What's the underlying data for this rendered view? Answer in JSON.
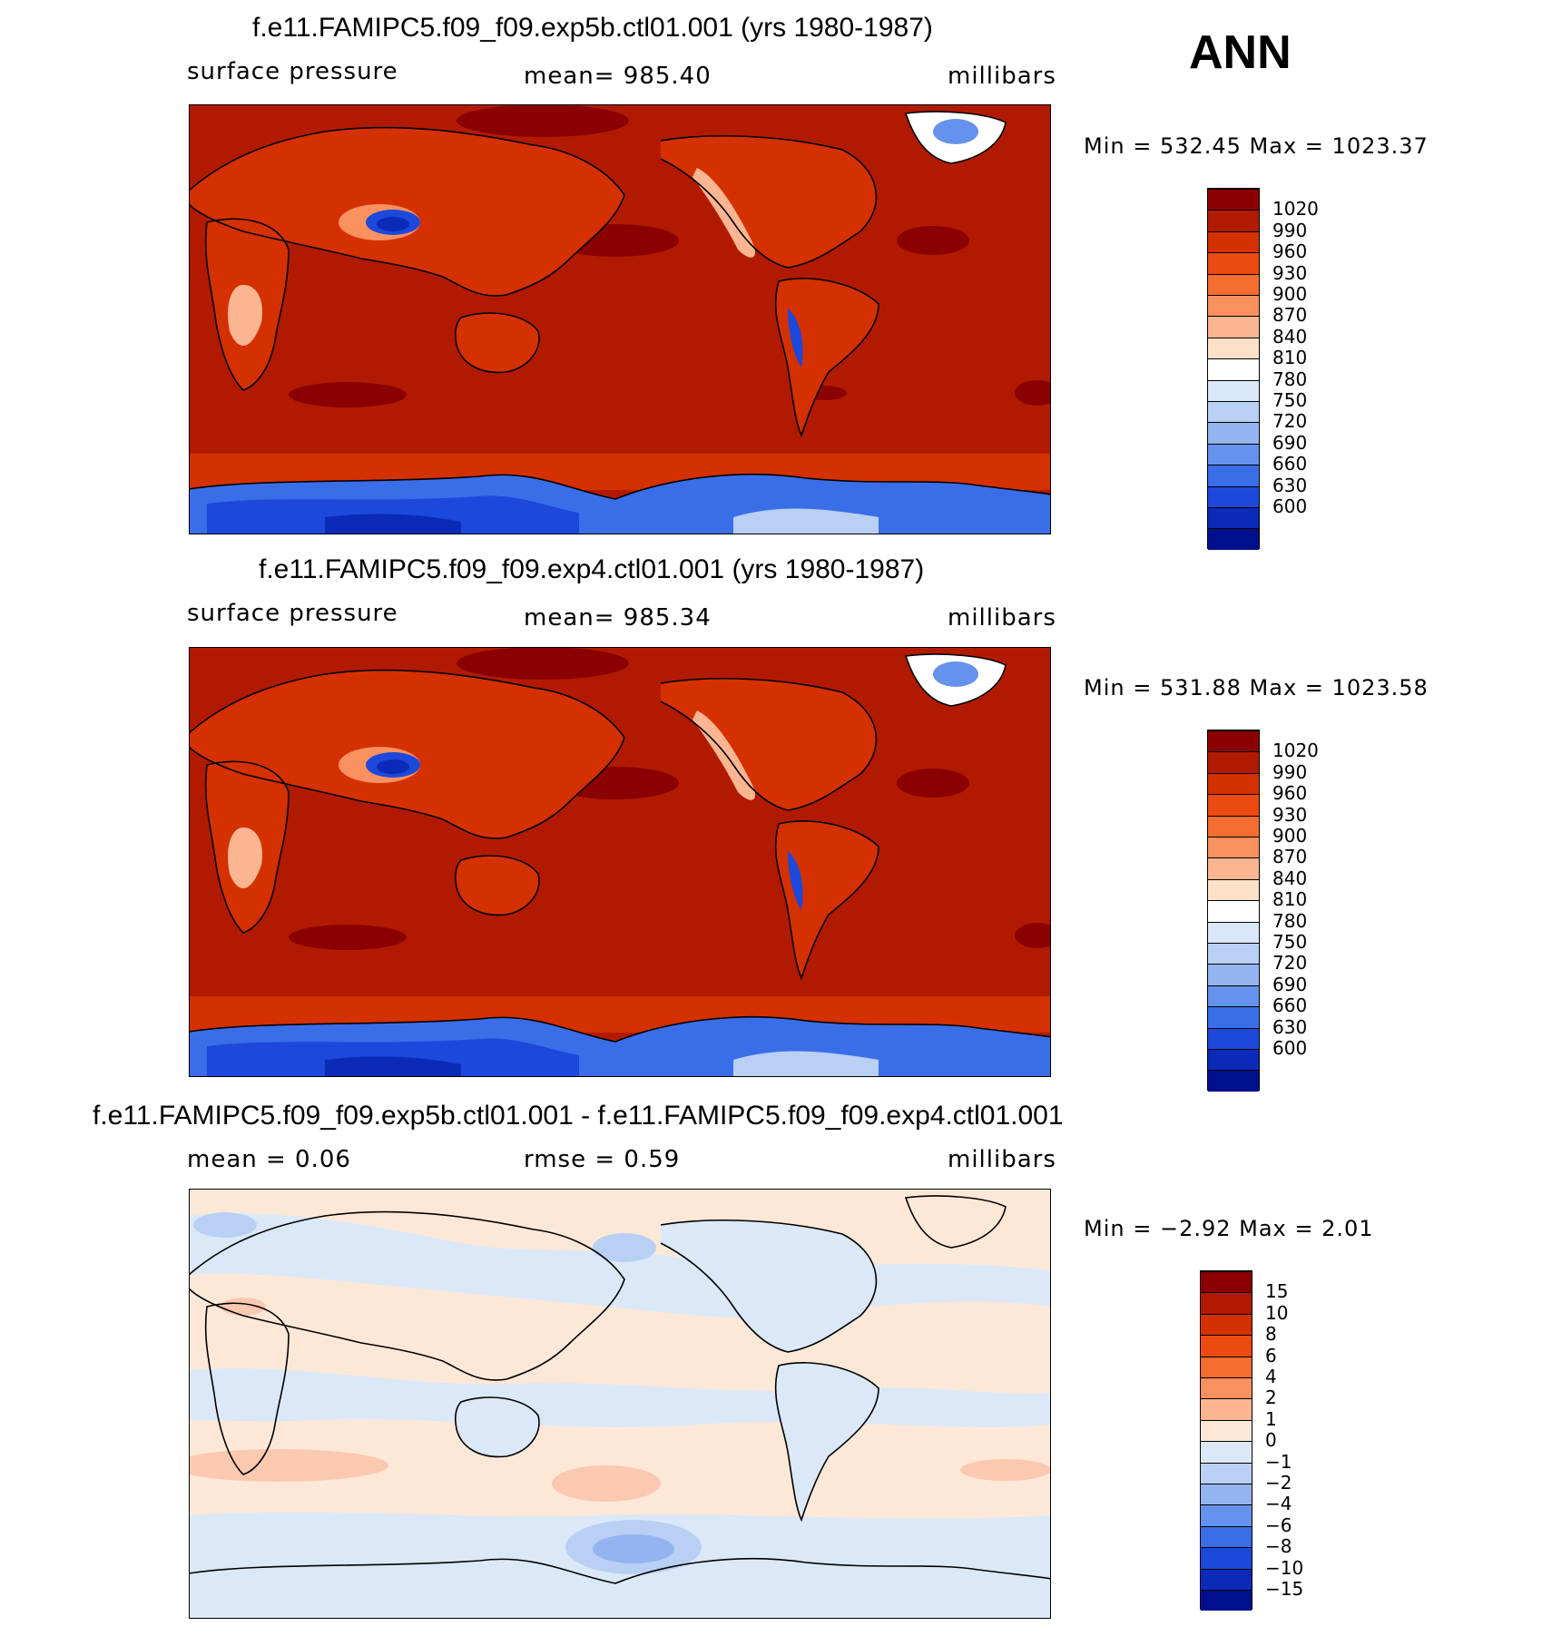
{
  "season": "ANN",
  "panels": [
    {
      "title": "f.e11.FAMIPC5.f09_f09.exp5b.ctl01.001 (yrs 1980-1987)",
      "left_label": "surface pressure",
      "center_label": "mean=  985.40",
      "units": "millibars",
      "minmax": "Min  =  532.45  Max  =  1023.37",
      "colorbar": {
        "ticks": [
          "1020",
          "990",
          "960",
          "930",
          "900",
          "870",
          "840",
          "810",
          "780",
          "750",
          "720",
          "690",
          "660",
          "630",
          "600"
        ],
        "colors": [
          "#8b0000",
          "#b21a00",
          "#d43000",
          "#ec4a10",
          "#f56d30",
          "#f99060",
          "#fbb590",
          "#fde0c8",
          "#ffffff",
          "#d9e8f8",
          "#b9d0f4",
          "#93b4f0",
          "#6592ec",
          "#3a6ee8",
          "#1c49dc",
          "#0a2ab8",
          "#00108c"
        ]
      },
      "map": {
        "ocean": "#b21a00",
        "land": "#d43000",
        "highlands": "#f99060",
        "plateau": "#1c49dc",
        "high": "#8b0000"
      }
    },
    {
      "title": "f.e11.FAMIPC5.f09_f09.exp4.ctl01.001 (yrs 1980-1987)",
      "left_label": "surface pressure",
      "center_label": "mean=  985.34",
      "units": "millibars",
      "minmax": "Min  =  531.88  Max  =  1023.58",
      "colorbar": {
        "ticks": [
          "1020",
          "990",
          "960",
          "930",
          "900",
          "870",
          "840",
          "810",
          "780",
          "750",
          "720",
          "690",
          "660",
          "630",
          "600"
        ],
        "colors": [
          "#8b0000",
          "#b21a00",
          "#d43000",
          "#ec4a10",
          "#f56d30",
          "#f99060",
          "#fbb590",
          "#fde0c8",
          "#ffffff",
          "#d9e8f8",
          "#b9d0f4",
          "#93b4f0",
          "#6592ec",
          "#3a6ee8",
          "#1c49dc",
          "#0a2ab8",
          "#00108c"
        ]
      },
      "map": {
        "ocean": "#b21a00",
        "land": "#d43000",
        "highlands": "#f99060",
        "plateau": "#1c49dc",
        "high": "#8b0000"
      }
    },
    {
      "title": "f.e11.FAMIPC5.f09_f09.exp5b.ctl01.001 - f.e11.FAMIPC5.f09_f09.exp4.ctl01.001",
      "left_label": "mean  =     0.06",
      "center_label": "rmse  =     0.59",
      "units": "millibars",
      "minmax": "Min  =    −2.92  Max  =     2.01",
      "colorbar": {
        "ticks": [
          "15",
          "10",
          "8",
          "6",
          "4",
          "2",
          "1",
          "0",
          "−1",
          "−2",
          "−4",
          "−6",
          "−8",
          "−10",
          "−15"
        ],
        "colors": [
          "#8b0000",
          "#b21a00",
          "#d43000",
          "#ec4a10",
          "#f56d30",
          "#f99060",
          "#fbb590",
          "#fde8d8",
          "#dbe8f8",
          "#b9d0f4",
          "#93b4f0",
          "#6592ec",
          "#3a6ee8",
          "#1c49dc",
          "#0a2ab8",
          "#00108c"
        ]
      },
      "map": {
        "ocean": "#fde8d8",
        "land": "#dbe8f8",
        "pos": "#fbc8b0",
        "neg": "#b9d0f4",
        "negstrong": "#93b4f0"
      }
    }
  ]
}
